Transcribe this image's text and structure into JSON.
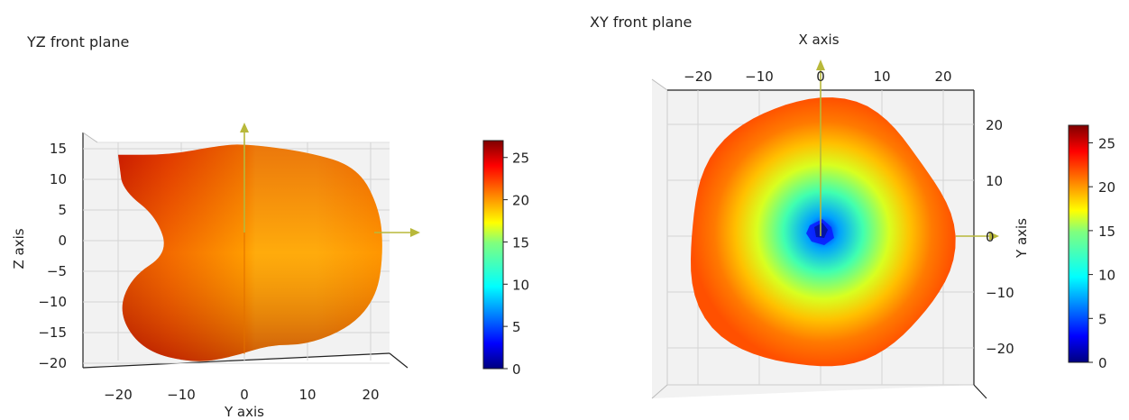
{
  "chart_data": [
    {
      "type": "surface",
      "title": "YZ front plane",
      "xlabel": "Y axis",
      "ylabel": "Z axis",
      "x_ticks": [
        -20,
        -10,
        0,
        10,
        20
      ],
      "y_ticks": [
        15,
        10,
        5,
        0,
        -5,
        -10,
        -15,
        -20
      ],
      "xlim": [
        -25,
        25
      ],
      "ylim": [
        -21,
        17
      ],
      "grid": true,
      "outline": [
        [
          -20,
          14
        ],
        [
          -12,
          14
        ],
        [
          -4,
          15.5
        ],
        [
          0,
          15.8
        ],
        [
          10,
          14.5
        ],
        [
          18,
          12
        ],
        [
          21.5,
          5
        ],
        [
          22,
          -2
        ],
        [
          21,
          -9
        ],
        [
          17,
          -14
        ],
        [
          10,
          -17
        ],
        [
          4,
          -17
        ],
        [
          -2,
          -19
        ],
        [
          -8,
          -20
        ],
        [
          -16,
          -18
        ],
        [
          -20,
          -12
        ],
        [
          -18,
          -6
        ],
        [
          -12,
          -2
        ],
        [
          -14,
          4
        ],
        [
          -19,
          8
        ],
        [
          -20,
          12
        ]
      ],
      "colorbar": {
        "ticks": [
          25,
          20,
          15,
          10,
          5,
          0
        ],
        "range": [
          0,
          27
        ]
      }
    },
    {
      "type": "surface",
      "title": "XY front plane",
      "xlabel": "X axis",
      "ylabel": "Y axis",
      "x_ticks": [
        -20,
        -10,
        0,
        10,
        20
      ],
      "y_ticks": [
        20,
        10,
        0,
        -10,
        -20
      ],
      "xlim": [
        -25,
        25
      ],
      "ylim": [
        -25,
        25
      ],
      "grid": true,
      "center_value": 3,
      "edge_value": 24,
      "colorbar": {
        "ticks": [
          25,
          20,
          15,
          10,
          5,
          0
        ],
        "range": [
          0,
          27
        ]
      }
    }
  ]
}
